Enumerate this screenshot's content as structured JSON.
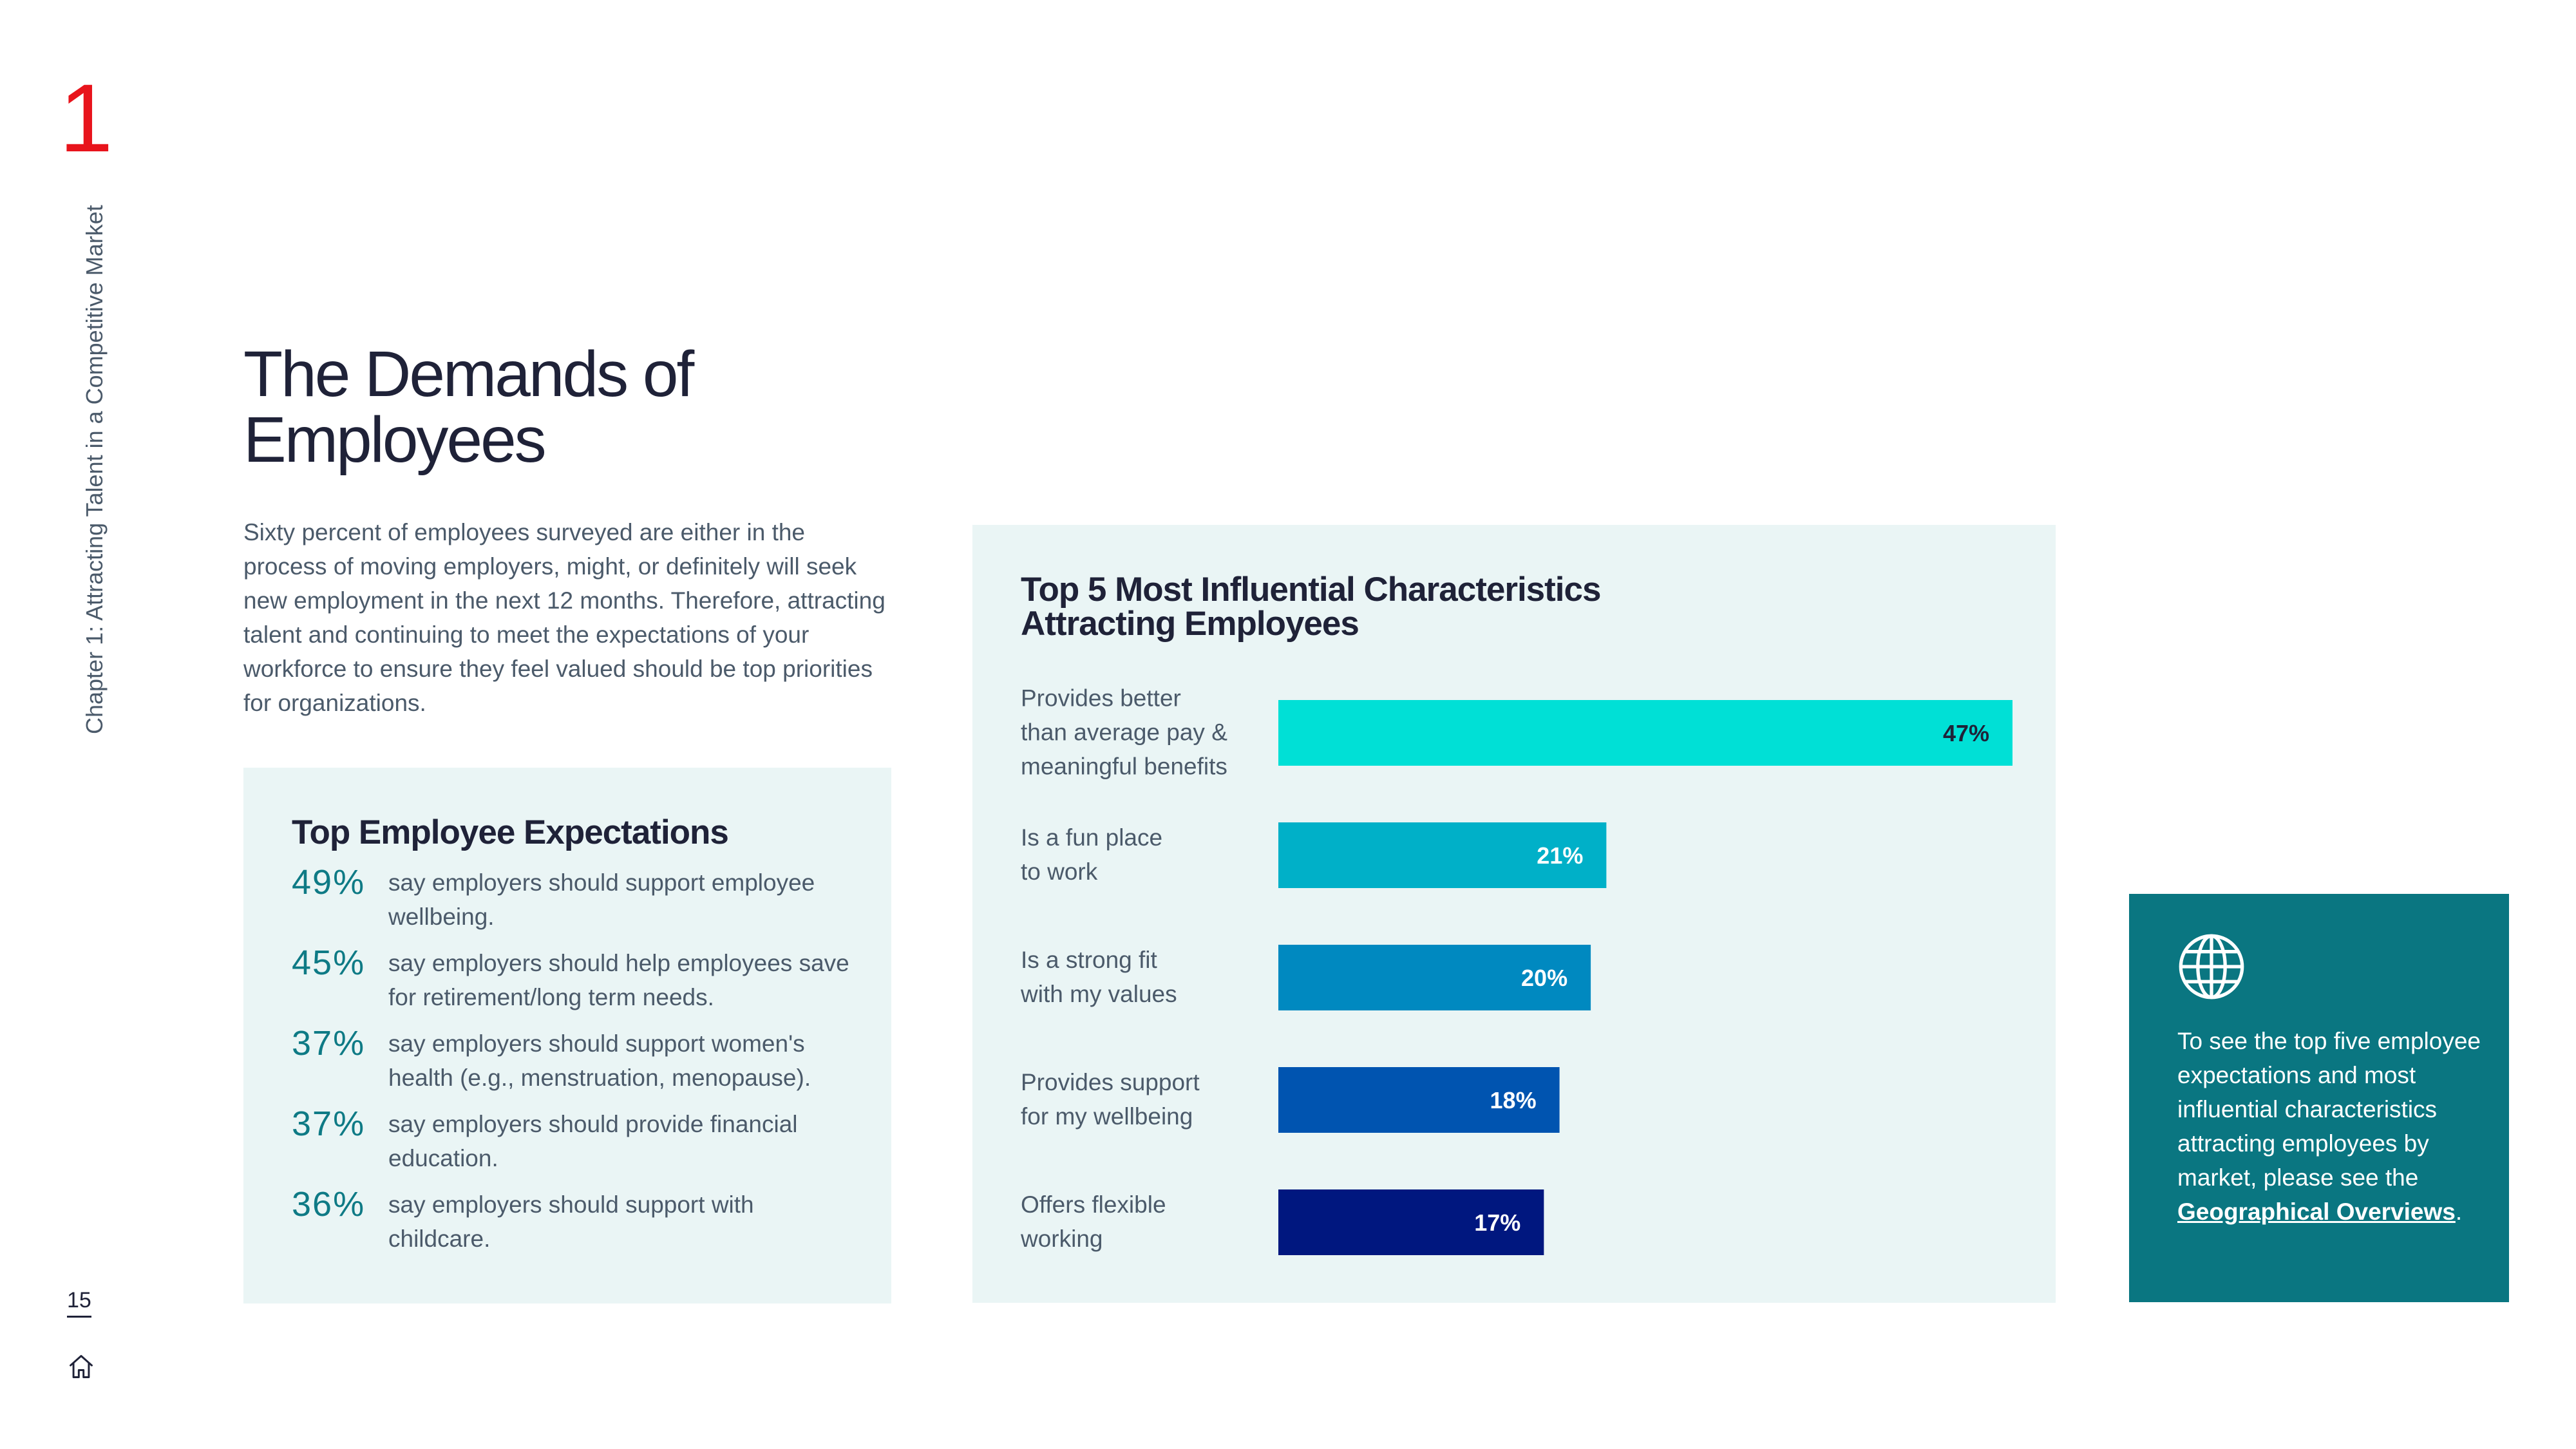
{
  "chapter": {
    "number": "1",
    "side_label": "Chapter 1: Attracting Talent in a Competitive Market",
    "page_number": "15"
  },
  "main": {
    "title_line1": "The Demands of",
    "title_line2": "Employees",
    "intro": "Sixty percent of employees surveyed are either in the process of moving employers, might, or definitely will seek new employment in the next 12 months. Therefore, attracting talent and continuing to meet the expectations of your workforce to ensure they feel valued should be top priorities for organizations."
  },
  "expectations": {
    "title": "Top Employee Expectations",
    "items": [
      {
        "pct": "49%",
        "text": "say employers should support employee wellbeing."
      },
      {
        "pct": "45%",
        "text": "say employers should help employees save for retirement/long term needs."
      },
      {
        "pct": "37%",
        "text": "say employers should support women's health (e.g., menstruation, menopause)."
      },
      {
        "pct": "37%",
        "text": "say employers should provide financial education."
      },
      {
        "pct": "36%",
        "text": "say employers should support with childcare."
      }
    ]
  },
  "cta": {
    "text": "To see the top five employee expectations and most influential characteristics attracting employees by market, please see the ",
    "link": "Geographical Overviews",
    "suffix": "."
  },
  "chart_data": {
    "type": "bar",
    "orientation": "horizontal",
    "title_line1": "Top 5 Most Influential Characteristics",
    "title_line2": "Attracting Employees",
    "categories": [
      [
        "Provides better",
        "than average pay &",
        "meaningful benefits"
      ],
      [
        "Is a fun place",
        "to work"
      ],
      [
        "Is a strong fit",
        "with my values"
      ],
      [
        "Provides support",
        "for my wellbeing"
      ],
      [
        "Offers flexible",
        "working"
      ]
    ],
    "values": [
      47,
      21,
      20,
      18,
      17
    ],
    "value_labels": [
      "47%",
      "21%",
      "20%",
      "18%",
      "17%"
    ],
    "unit": "%",
    "colors": [
      "#00e0d6",
      "#00b0c8",
      "#0089c0",
      "#0054b0",
      "#00177f"
    ],
    "label_colors": [
      "#1f2238",
      "#ffffff",
      "#ffffff",
      "#ffffff",
      "#ffffff"
    ]
  }
}
